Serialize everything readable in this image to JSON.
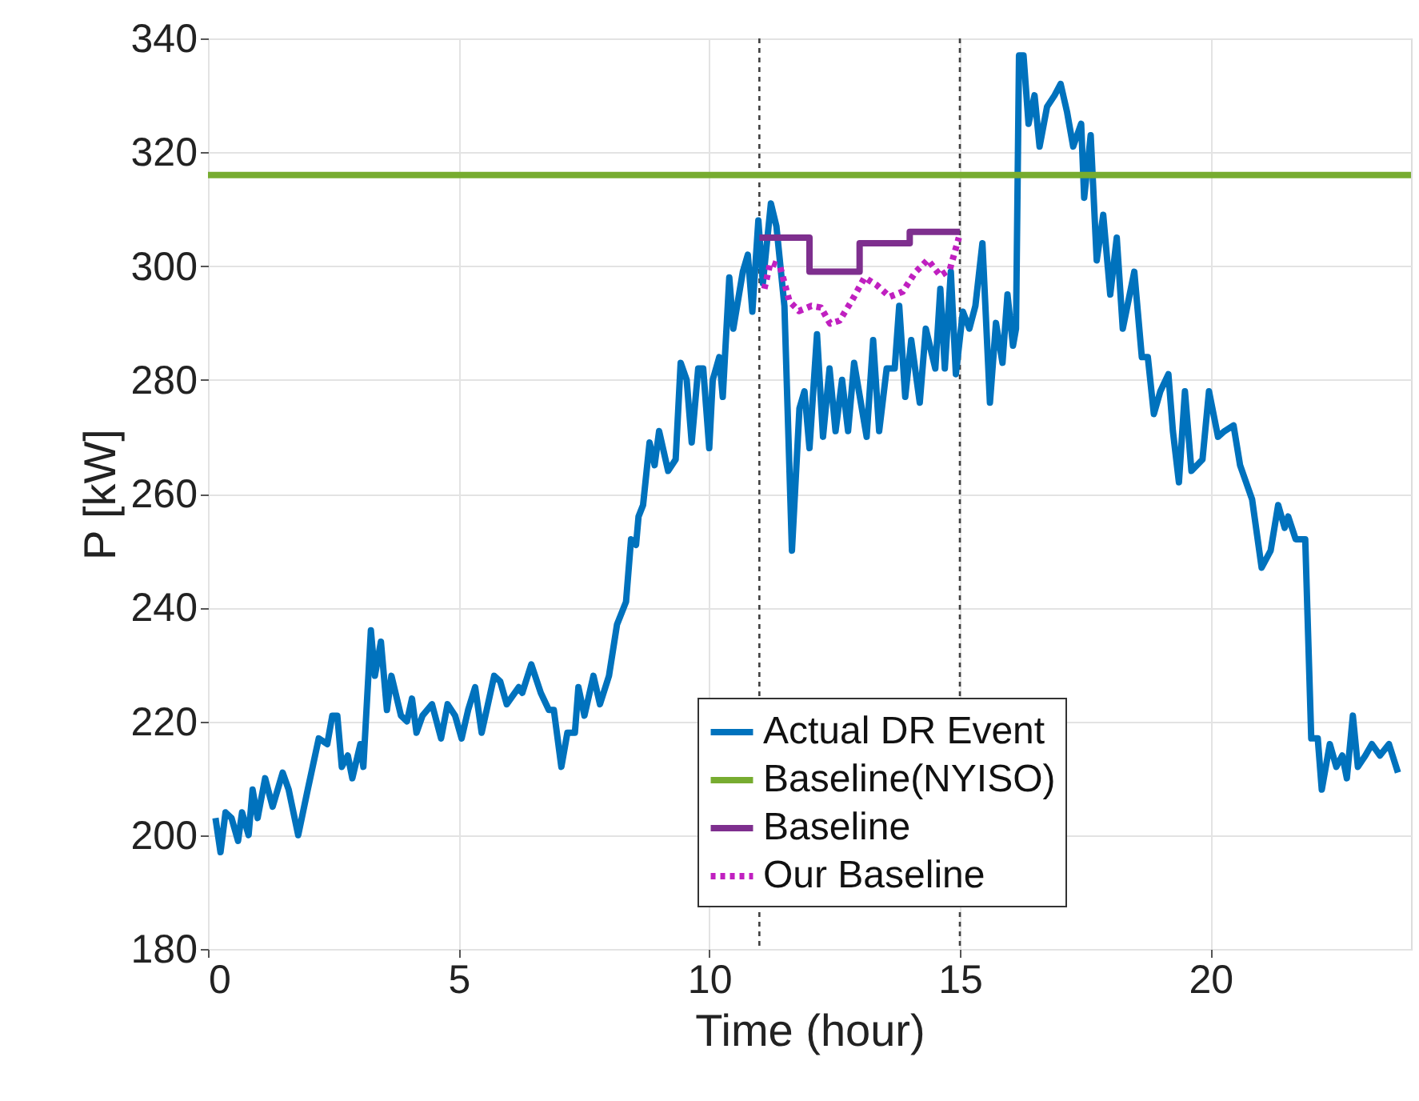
{
  "chart_data": {
    "type": "line",
    "xlabel": "Time (hour)",
    "ylabel": "P [kW]",
    "xlim": [
      0,
      24
    ],
    "xticks": [
      0,
      5,
      10,
      15,
      20
    ],
    "ylim": [
      180,
      340
    ],
    "yticks": [
      180,
      200,
      220,
      240,
      260,
      280,
      300,
      320,
      340
    ],
    "grid": true,
    "legend": "bottom right",
    "marker": "none",
    "ref_lines": [
      {
        "axis": "x",
        "value": 11,
        "color": "#404040",
        "line_style": "dotted"
      },
      {
        "axis": "x",
        "value": 15,
        "color": "#404040",
        "line_style": "dotted"
      }
    ],
    "series": [
      {
        "name": "Actual DR Event",
        "color": "#0072bd",
        "type": "line",
        "line_style": "solid",
        "x": [
          0.15,
          0.25,
          0.35,
          0.47,
          0.6,
          0.68,
          0.81,
          0.89,
          0.99,
          1.14,
          1.29,
          1.49,
          1.61,
          1.8,
          1.99,
          2.21,
          2.38,
          2.48,
          2.58,
          2.67,
          2.79,
          2.88,
          3.04,
          3.1,
          3.25,
          3.33,
          3.45,
          3.57,
          3.66,
          3.85,
          3.97,
          4.07,
          4.16,
          4.28,
          4.47,
          4.65,
          4.78,
          4.93,
          5.06,
          5.19,
          5.33,
          5.46,
          5.71,
          5.83,
          5.96,
          6.2,
          6.27,
          6.45,
          6.64,
          6.8,
          6.9,
          7.05,
          7.17,
          7.32,
          7.39,
          7.51,
          7.69,
          7.82,
          8.0,
          8.16,
          8.34,
          8.44,
          8.54,
          8.59,
          8.68,
          8.81,
          8.91,
          9.0,
          9.18,
          9.33,
          9.43,
          9.55,
          9.65,
          9.78,
          9.88,
          10.0,
          10.07,
          10.2,
          10.27,
          10.4,
          10.48,
          10.67,
          10.77,
          10.86,
          10.98,
          11.07,
          11.23,
          11.34,
          11.5,
          11.65,
          11.8,
          11.9,
          12.0,
          12.15,
          12.27,
          12.4,
          12.52,
          12.65,
          12.77,
          12.89,
          13.14,
          13.27,
          13.39,
          13.54,
          13.7,
          13.79,
          13.91,
          14.03,
          14.2,
          14.32,
          14.51,
          14.61,
          14.7,
          14.82,
          14.92,
          15.06,
          15.19,
          15.31,
          15.45,
          15.6,
          15.72,
          15.85,
          15.95,
          16.06,
          16.12,
          16.18,
          16.27,
          16.37,
          16.49,
          16.59,
          16.74,
          16.89,
          17.01,
          17.14,
          17.26,
          17.42,
          17.48,
          17.61,
          17.73,
          17.86,
          18.0,
          18.13,
          18.25,
          18.48,
          18.63,
          18.75,
          18.87,
          19.0,
          19.16,
          19.25,
          19.37,
          19.49,
          19.62,
          19.84,
          19.97,
          20.15,
          20.28,
          20.46,
          20.59,
          20.71,
          20.83,
          21.02,
          21.2,
          21.35,
          21.48,
          21.55,
          21.7,
          21.89,
          22.01,
          22.14,
          22.22,
          22.38,
          22.51,
          22.63,
          22.72,
          22.84,
          22.94,
          23.09,
          23.22,
          23.38,
          23.56,
          23.74
        ],
        "values": [
          203,
          197,
          204,
          203,
          199,
          204,
          200,
          208,
          203,
          210,
          205,
          211,
          208,
          200,
          208,
          217,
          216,
          221,
          221,
          212,
          214,
          210,
          216,
          212,
          236,
          228,
          234,
          222,
          228,
          221,
          220,
          224,
          218,
          221,
          223,
          217,
          223,
          221,
          217,
          222,
          226,
          218,
          228,
          227,
          223,
          226,
          225,
          230,
          225,
          222,
          222,
          212,
          218,
          218,
          226,
          221,
          228,
          223,
          228,
          237,
          241,
          252,
          251,
          256,
          258,
          269,
          265,
          271,
          264,
          266,
          283,
          280,
          269,
          282,
          282,
          268,
          280,
          284,
          277,
          298,
          289,
          299,
          302,
          292,
          308,
          297,
          311,
          307,
          293,
          250,
          275,
          278,
          268,
          288,
          270,
          282,
          271,
          280,
          271,
          283,
          270,
          287,
          271,
          282,
          282,
          293,
          277,
          287,
          276,
          289,
          282,
          296,
          282,
          299,
          281,
          292,
          289,
          293,
          304,
          276,
          290,
          283,
          295,
          286,
          289,
          337,
          337,
          325,
          330,
          321,
          328,
          330,
          332,
          327,
          321,
          325,
          312,
          323,
          301,
          309,
          295,
          305,
          289,
          299,
          284,
          284,
          274,
          278,
          281,
          271,
          262,
          278,
          264,
          266,
          278,
          270,
          271,
          272,
          265,
          262,
          259,
          247,
          250,
          258,
          254,
          256,
          252,
          252,
          217,
          217,
          208,
          216,
          212,
          214,
          210,
          221,
          212,
          214,
          216,
          214,
          216,
          211
        ]
      },
      {
        "name": "Baseline(NYISO)",
        "color": "#77ac30",
        "type": "line",
        "line_style": "solid",
        "x": [
          0,
          24
        ],
        "values": [
          316,
          316
        ]
      },
      {
        "name": "Baseline",
        "color": "#7e2f8e",
        "type": "step",
        "line_style": "solid",
        "x": [
          11,
          12,
          13,
          14,
          15
        ],
        "values": [
          305,
          299,
          304,
          306,
          306
        ]
      },
      {
        "name": "Our Baseline",
        "color": "#c020c0",
        "type": "line",
        "line_style": "dotted",
        "x": [
          11.1,
          11.22,
          11.41,
          11.6,
          11.79,
          12.04,
          12.23,
          12.41,
          12.6,
          12.85,
          13.1,
          13.35,
          13.6,
          13.86,
          14.11,
          14.36,
          14.61,
          14.8,
          14.98
        ],
        "values": [
          296,
          300.6,
          300,
          293.8,
          292.1,
          293,
          292.7,
          289.9,
          290.4,
          294,
          298,
          296.6,
          294.6,
          295.5,
          298.9,
          301.1,
          298.3,
          299.4,
          305
        ]
      }
    ]
  }
}
